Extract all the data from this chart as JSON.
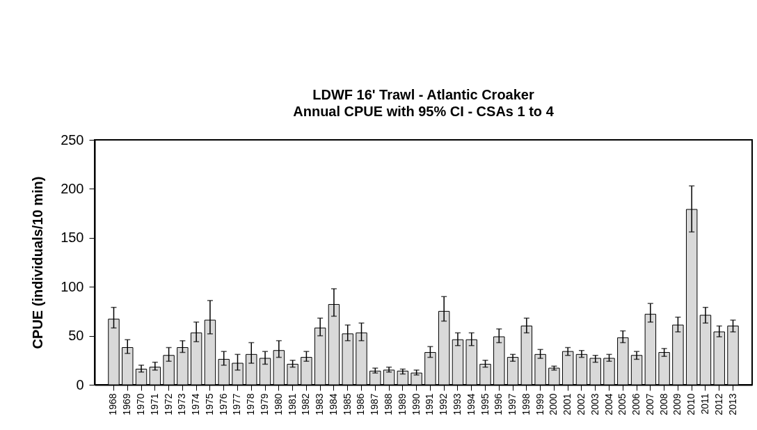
{
  "chart_data": {
    "type": "bar",
    "title": "LDWF 16' Trawl - Atlantic Croaker",
    "subtitle": "Annual CPUE with 95% CI - CSAs 1 to 4",
    "ylabel": "CPUE (individuals/10 min)",
    "categories": [
      "1968",
      "1969",
      "1970",
      "1971",
      "1972",
      "1973",
      "1974",
      "1975",
      "1976",
      "1977",
      "1978",
      "1979",
      "1980",
      "1981",
      "1982",
      "1983",
      "1984",
      "1985",
      "1986",
      "1987",
      "1988",
      "1989",
      "1990",
      "1991",
      "1992",
      "1993",
      "1994",
      "1995",
      "1996",
      "1997",
      "1998",
      "1999",
      "2000",
      "2001",
      "2002",
      "2003",
      "2004",
      "2005",
      "2006",
      "2007",
      "2008",
      "2009",
      "2010",
      "2011",
      "2012",
      "2013"
    ],
    "values": [
      67,
      38,
      16,
      18,
      30,
      38,
      53,
      66,
      26,
      22,
      31,
      27,
      35,
      21,
      28,
      58,
      82,
      52,
      53,
      14,
      15,
      14,
      12,
      33,
      75,
      46,
      46,
      21,
      49,
      28,
      60,
      31,
      17,
      34,
      31,
      27,
      27,
      48,
      30,
      72,
      33,
      61,
      179,
      71,
      54,
      60
    ],
    "errors": [
      [
        58,
        79
      ],
      [
        32,
        46
      ],
      [
        13,
        20
      ],
      [
        15,
        23
      ],
      [
        24,
        38
      ],
      [
        33,
        45
      ],
      [
        44,
        64
      ],
      [
        52,
        86
      ],
      [
        20,
        34
      ],
      [
        15,
        31
      ],
      [
        22,
        43
      ],
      [
        21,
        34
      ],
      [
        28,
        45
      ],
      [
        18,
        25
      ],
      [
        24,
        34
      ],
      [
        50,
        68
      ],
      [
        70,
        98
      ],
      [
        45,
        61
      ],
      [
        45,
        63
      ],
      [
        12,
        17
      ],
      [
        13,
        18
      ],
      [
        11,
        16
      ],
      [
        10,
        15
      ],
      [
        28,
        39
      ],
      [
        65,
        90
      ],
      [
        40,
        53
      ],
      [
        40,
        53
      ],
      [
        18,
        25
      ],
      [
        43,
        57
      ],
      [
        24,
        31
      ],
      [
        53,
        68
      ],
      [
        27,
        36
      ],
      [
        15,
        19
      ],
      [
        30,
        38
      ],
      [
        28,
        35
      ],
      [
        23,
        30
      ],
      [
        24,
        31
      ],
      [
        43,
        55
      ],
      [
        26,
        34
      ],
      [
        64,
        83
      ],
      [
        29,
        37
      ],
      [
        54,
        69
      ],
      [
        156,
        203
      ],
      [
        63,
        79
      ],
      [
        49,
        60
      ],
      [
        54,
        66
      ]
    ],
    "color": "#d9d9d9",
    "ylim": [
      0,
      250
    ],
    "yticks": [
      0,
      50,
      100,
      150,
      200,
      250
    ],
    "grid": false
  }
}
